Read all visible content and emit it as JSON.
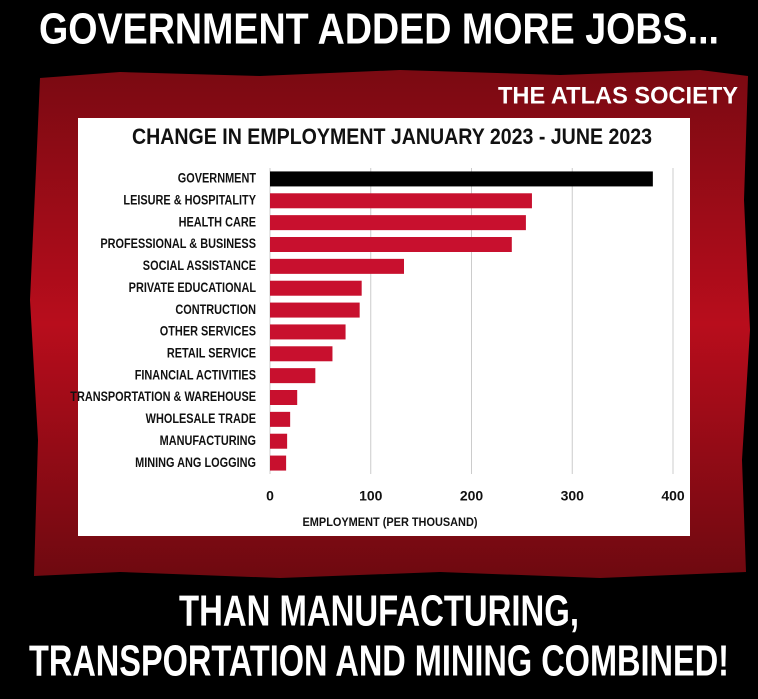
{
  "headline": "GOVERNMENT ADDED MORE JOBS...",
  "brand": "THE ATLAS SOCIETY",
  "footer": [
    "THAN MANUFACTURING,",
    "TRANSPORTATION AND MINING COMBINED!"
  ],
  "chart_data": {
    "type": "bar",
    "orientation": "horizontal",
    "title": "CHANGE IN EMPLOYMENT JANUARY 2023 - JUNE 2023",
    "xlabel": "EMPLOYMENT (PER THOUSAND)",
    "categories": [
      "GOVERNMENT",
      "LEISURE & HOSPITALITY",
      "HEALTH CARE",
      "PROFESSIONAL & BUSINESS",
      "SOCIAL ASSISTANCE",
      "PRIVATE EDUCATIONAL",
      "CONTRUCTION",
      "OTHER SERVICES",
      "RETAIL SERVICE",
      "FINANCIAL ACTIVITIES",
      "TRANSPORTATION & WAREHOUSE",
      "WHOLESALE TRADE",
      "MANUFACTURING",
      "MINING ANG LOGGING"
    ],
    "values": [
      380,
      260,
      254,
      240,
      133,
      91,
      89,
      75,
      62,
      45,
      27,
      20,
      17,
      16
    ],
    "colors": [
      "#000000",
      "#c8102e",
      "#c8102e",
      "#c8102e",
      "#c8102e",
      "#c8102e",
      "#c8102e",
      "#c8102e",
      "#c8102e",
      "#c8102e",
      "#c8102e",
      "#c8102e",
      "#c8102e",
      "#c8102e"
    ],
    "xlim": [
      0,
      400
    ],
    "xticks": [
      0,
      100,
      200,
      300,
      400
    ],
    "grid": true
  }
}
